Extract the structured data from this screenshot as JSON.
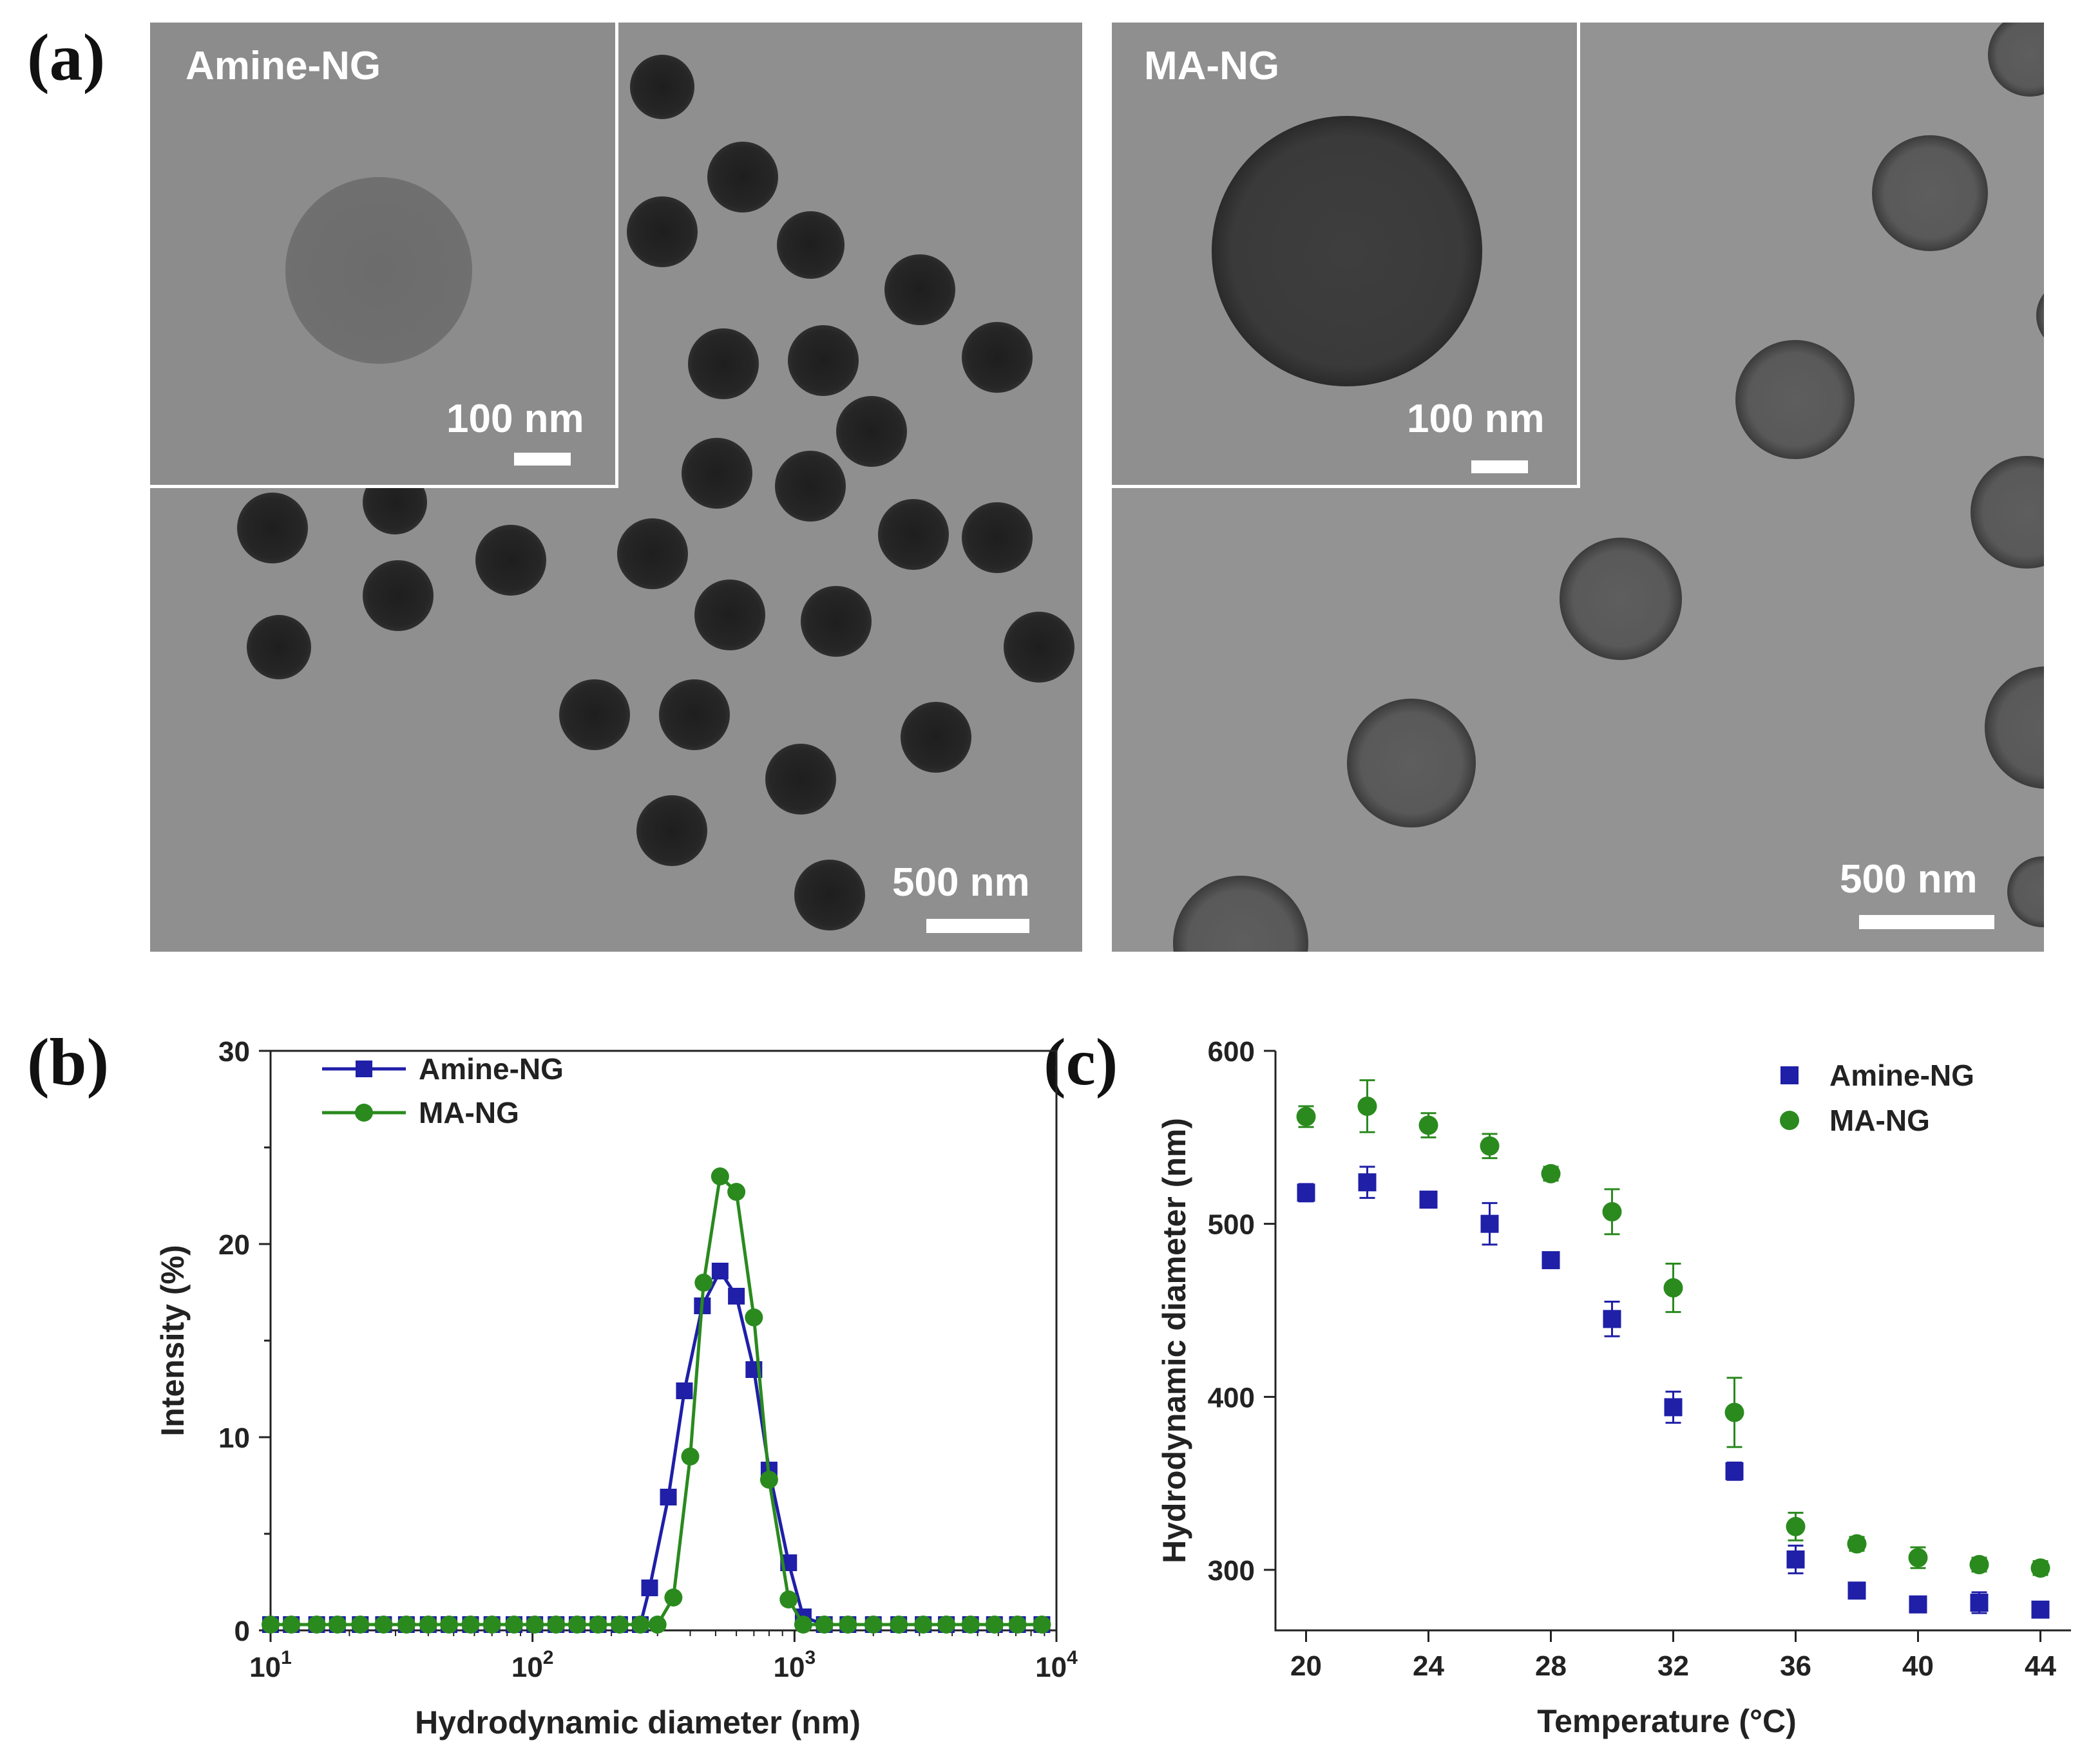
{
  "panels": {
    "a": "(a)",
    "b": "(b)",
    "c": "(c)"
  },
  "tem": {
    "left": {
      "inset_label": "Amine-NG",
      "inset_scale": "100 nm",
      "main_scale": "500 nm"
    },
    "right": {
      "inset_label": "MA-NG",
      "inset_scale": "100 nm",
      "main_scale": "500 nm"
    }
  },
  "chart_data": [
    {
      "type": "line",
      "id": "b",
      "xlabel": "Hydrodynamic diameter (nm)",
      "ylabel": "Intensity (%)",
      "xscale": "log",
      "xlim": [
        10,
        10000
      ],
      "ylim": [
        0,
        30
      ],
      "x_ticks": [
        10,
        100,
        1000,
        10000
      ],
      "x_tick_bases": [
        "10",
        "10",
        "10",
        "10"
      ],
      "x_tick_exponents": [
        "1",
        "2",
        "3",
        "4"
      ],
      "y_ticks": [
        "0",
        "10",
        "20",
        "30"
      ],
      "legend": "top-left",
      "series": [
        {
          "name": "Amine-NG",
          "color": "#1f1fa8",
          "marker": "square",
          "x": [
            10,
            12,
            15,
            18,
            22,
            27,
            33,
            40,
            48,
            58,
            70,
            85,
            102,
            123,
            148,
            178,
            215,
            258,
            280,
            330,
            380,
            445,
            520,
            600,
            700,
            800,
            950,
            1080,
            1300,
            1600,
            2000,
            2500,
            3100,
            3800,
            4700,
            5800,
            7100,
            8800
          ],
          "y": [
            0.3,
            0.3,
            0.3,
            0.3,
            0.3,
            0.3,
            0.3,
            0.3,
            0.3,
            0.3,
            0.3,
            0.3,
            0.3,
            0.3,
            0.3,
            0.3,
            0.3,
            0.3,
            2.2,
            6.9,
            12.4,
            16.8,
            18.6,
            17.3,
            13.5,
            8.3,
            3.5,
            0.7,
            0.3,
            0.3,
            0.3,
            0.3,
            0.3,
            0.3,
            0.3,
            0.3,
            0.3,
            0.3
          ]
        },
        {
          "name": "MA-NG",
          "color": "#2a8a1e",
          "marker": "circle",
          "x": [
            10,
            12,
            15,
            18,
            22,
            27,
            33,
            40,
            48,
            58,
            70,
            85,
            102,
            123,
            148,
            178,
            215,
            258,
            300,
            345,
            400,
            450,
            520,
            600,
            700,
            800,
            950,
            1080,
            1300,
            1600,
            2000,
            2500,
            3100,
            3800,
            4700,
            5800,
            7100,
            8800
          ],
          "y": [
            0.3,
            0.3,
            0.3,
            0.3,
            0.3,
            0.3,
            0.3,
            0.3,
            0.3,
            0.3,
            0.3,
            0.3,
            0.3,
            0.3,
            0.3,
            0.3,
            0.3,
            0.3,
            0.3,
            1.7,
            9.0,
            18.0,
            23.5,
            22.7,
            16.2,
            7.8,
            1.6,
            0.3,
            0.3,
            0.3,
            0.3,
            0.3,
            0.3,
            0.3,
            0.3,
            0.3,
            0.3,
            0.3
          ]
        }
      ]
    },
    {
      "type": "scatter",
      "id": "c",
      "xlabel": "Temperature (°C)",
      "ylabel": "Hydrodynamic diameter (nm)",
      "xlim": [
        19,
        45
      ],
      "ylim": [
        265,
        600
      ],
      "x_ticks": [
        "20",
        "24",
        "28",
        "32",
        "36",
        "40",
        "44"
      ],
      "y_ticks": [
        "300",
        "400",
        "500",
        "600"
      ],
      "legend": "top-right",
      "series": [
        {
          "name": "Amine-NG",
          "color": "#1f1fa8",
          "marker": "square",
          "x": [
            20,
            22,
            24,
            26,
            28,
            30,
            32,
            34,
            36,
            38,
            40,
            42,
            44
          ],
          "y": [
            518,
            524,
            514,
            500,
            479,
            445,
            394,
            357,
            306,
            288,
            280,
            281,
            277
          ],
          "err": [
            5,
            9,
            4,
            12,
            4,
            10,
            9,
            5,
            8,
            4,
            4,
            6,
            4
          ]
        },
        {
          "name": "MA-NG",
          "color": "#2a8a1e",
          "marker": "circle",
          "x": [
            20,
            22,
            24,
            26,
            28,
            30,
            32,
            34,
            36,
            38,
            40,
            42,
            44
          ],
          "y": [
            562,
            568,
            557,
            545,
            529,
            507,
            463,
            391,
            325,
            315,
            307,
            303,
            301
          ],
          "err": [
            6,
            15,
            7,
            7,
            4,
            13,
            14,
            20,
            8,
            4,
            6,
            4,
            4
          ]
        }
      ]
    }
  ]
}
